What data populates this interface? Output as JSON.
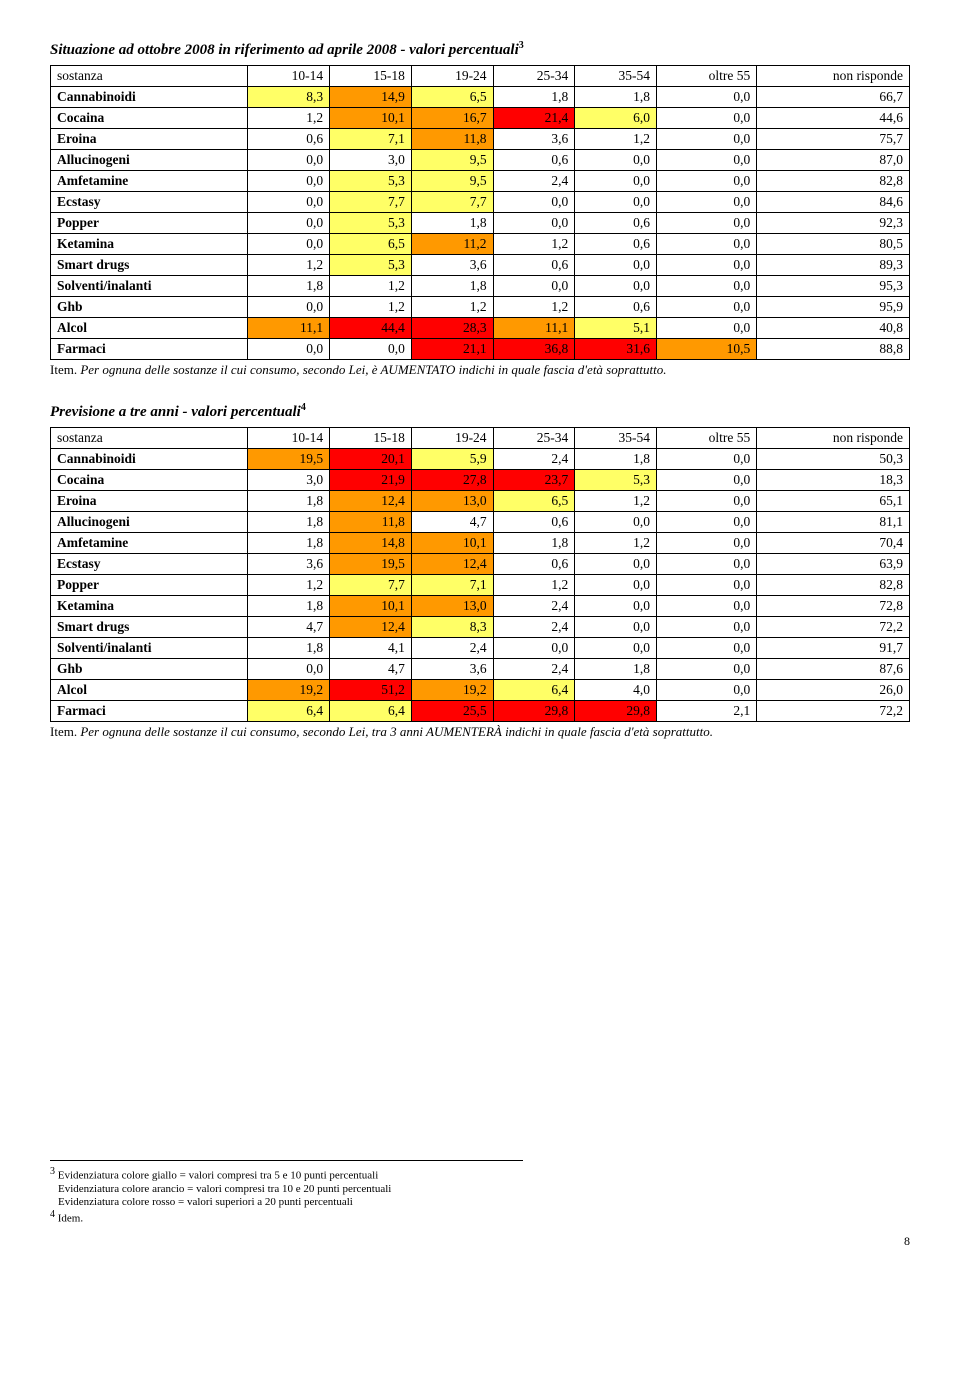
{
  "colors": {
    "yellow": "#ffff66",
    "orange": "#ff9900",
    "red": "#ff0000",
    "none": "#ffffff"
  },
  "table1": {
    "title": "Situazione ad ottobre 2008 in riferimento ad aprile 2008 - valori percentuali",
    "title_sup": "3",
    "columns": [
      "sostanza",
      "10-14",
      "15-18",
      "19-24",
      "25-34",
      "35-54",
      "oltre 55",
      "non risponde"
    ],
    "rows": [
      {
        "label": "Cannabinoidi",
        "cells": [
          {
            "v": "8,3",
            "c": "yellow"
          },
          {
            "v": "14,9",
            "c": "orange"
          },
          {
            "v": "6,5",
            "c": "yellow"
          },
          {
            "v": "1,8",
            "c": "none"
          },
          {
            "v": "1,8",
            "c": "none"
          },
          {
            "v": "0,0",
            "c": "none"
          },
          {
            "v": "66,7",
            "c": "none"
          }
        ]
      },
      {
        "label": "Cocaina",
        "cells": [
          {
            "v": "1,2",
            "c": "none"
          },
          {
            "v": "10,1",
            "c": "orange"
          },
          {
            "v": "16,7",
            "c": "orange"
          },
          {
            "v": "21,4",
            "c": "red"
          },
          {
            "v": "6,0",
            "c": "yellow"
          },
          {
            "v": "0,0",
            "c": "none"
          },
          {
            "v": "44,6",
            "c": "none"
          }
        ]
      },
      {
        "label": "Eroina",
        "cells": [
          {
            "v": "0,6",
            "c": "none"
          },
          {
            "v": "7,1",
            "c": "yellow"
          },
          {
            "v": "11,8",
            "c": "orange"
          },
          {
            "v": "3,6",
            "c": "none"
          },
          {
            "v": "1,2",
            "c": "none"
          },
          {
            "v": "0,0",
            "c": "none"
          },
          {
            "v": "75,7",
            "c": "none"
          }
        ]
      },
      {
        "label": "Allucinogeni",
        "cells": [
          {
            "v": "0,0",
            "c": "none"
          },
          {
            "v": "3,0",
            "c": "none"
          },
          {
            "v": "9,5",
            "c": "yellow"
          },
          {
            "v": "0,6",
            "c": "none"
          },
          {
            "v": "0,0",
            "c": "none"
          },
          {
            "v": "0,0",
            "c": "none"
          },
          {
            "v": "87,0",
            "c": "none"
          }
        ]
      },
      {
        "label": "Amfetamine",
        "cells": [
          {
            "v": "0,0",
            "c": "none"
          },
          {
            "v": "5,3",
            "c": "yellow"
          },
          {
            "v": "9,5",
            "c": "yellow"
          },
          {
            "v": "2,4",
            "c": "none"
          },
          {
            "v": "0,0",
            "c": "none"
          },
          {
            "v": "0,0",
            "c": "none"
          },
          {
            "v": "82,8",
            "c": "none"
          }
        ]
      },
      {
        "label": "Ecstasy",
        "cells": [
          {
            "v": "0,0",
            "c": "none"
          },
          {
            "v": "7,7",
            "c": "yellow"
          },
          {
            "v": "7,7",
            "c": "yellow"
          },
          {
            "v": "0,0",
            "c": "none"
          },
          {
            "v": "0,0",
            "c": "none"
          },
          {
            "v": "0,0",
            "c": "none"
          },
          {
            "v": "84,6",
            "c": "none"
          }
        ]
      },
      {
        "label": "Popper",
        "cells": [
          {
            "v": "0,0",
            "c": "none"
          },
          {
            "v": "5,3",
            "c": "yellow"
          },
          {
            "v": "1,8",
            "c": "none"
          },
          {
            "v": "0,0",
            "c": "none"
          },
          {
            "v": "0,6",
            "c": "none"
          },
          {
            "v": "0,0",
            "c": "none"
          },
          {
            "v": "92,3",
            "c": "none"
          }
        ]
      },
      {
        "label": "Ketamina",
        "cells": [
          {
            "v": "0,0",
            "c": "none"
          },
          {
            "v": "6,5",
            "c": "yellow"
          },
          {
            "v": "11,2",
            "c": "orange"
          },
          {
            "v": "1,2",
            "c": "none"
          },
          {
            "v": "0,6",
            "c": "none"
          },
          {
            "v": "0,0",
            "c": "none"
          },
          {
            "v": "80,5",
            "c": "none"
          }
        ]
      },
      {
        "label": "Smart drugs",
        "cells": [
          {
            "v": "1,2",
            "c": "none"
          },
          {
            "v": "5,3",
            "c": "yellow"
          },
          {
            "v": "3,6",
            "c": "none"
          },
          {
            "v": "0,6",
            "c": "none"
          },
          {
            "v": "0,0",
            "c": "none"
          },
          {
            "v": "0,0",
            "c": "none"
          },
          {
            "v": "89,3",
            "c": "none"
          }
        ]
      },
      {
        "label": "Solventi/inalanti",
        "cells": [
          {
            "v": "1,8",
            "c": "none"
          },
          {
            "v": "1,2",
            "c": "none"
          },
          {
            "v": "1,8",
            "c": "none"
          },
          {
            "v": "0,0",
            "c": "none"
          },
          {
            "v": "0,0",
            "c": "none"
          },
          {
            "v": "0,0",
            "c": "none"
          },
          {
            "v": "95,3",
            "c": "none"
          }
        ]
      },
      {
        "label": "Ghb",
        "cells": [
          {
            "v": "0,0",
            "c": "none"
          },
          {
            "v": "1,2",
            "c": "none"
          },
          {
            "v": "1,2",
            "c": "none"
          },
          {
            "v": "1,2",
            "c": "none"
          },
          {
            "v": "0,6",
            "c": "none"
          },
          {
            "v": "0,0",
            "c": "none"
          },
          {
            "v": "95,9",
            "c": "none"
          }
        ]
      },
      {
        "label": "Alcol",
        "cells": [
          {
            "v": "11,1",
            "c": "orange"
          },
          {
            "v": "44,4",
            "c": "red"
          },
          {
            "v": "28,3",
            "c": "red"
          },
          {
            "v": "11,1",
            "c": "orange"
          },
          {
            "v": "5,1",
            "c": "yellow"
          },
          {
            "v": "0,0",
            "c": "none"
          },
          {
            "v": "40,8",
            "c": "none"
          }
        ]
      },
      {
        "label": "Farmaci",
        "cells": [
          {
            "v": "0,0",
            "c": "none"
          },
          {
            "v": "0,0",
            "c": "none"
          },
          {
            "v": "21,1",
            "c": "red"
          },
          {
            "v": "36,8",
            "c": "red"
          },
          {
            "v": "31,6",
            "c": "red"
          },
          {
            "v": "10,5",
            "c": "orange"
          },
          {
            "v": "88,8",
            "c": "none"
          }
        ]
      }
    ],
    "item_prefix": "Item. ",
    "item_text": "Per ognuna delle sostanze il cui consumo, secondo Lei, è AUMENTATO indichi in quale fascia d'età soprattutto."
  },
  "table2": {
    "title": "Previsione a tre anni - valori percentuali",
    "title_sup": "4",
    "columns": [
      "sostanza",
      "10-14",
      "15-18",
      "19-24",
      "25-34",
      "35-54",
      "oltre 55",
      "non risponde"
    ],
    "rows": [
      {
        "label": "Cannabinoidi",
        "cells": [
          {
            "v": "19,5",
            "c": "orange"
          },
          {
            "v": "20,1",
            "c": "red"
          },
          {
            "v": "5,9",
            "c": "yellow"
          },
          {
            "v": "2,4",
            "c": "none"
          },
          {
            "v": "1,8",
            "c": "none"
          },
          {
            "v": "0,0",
            "c": "none"
          },
          {
            "v": "50,3",
            "c": "none"
          }
        ]
      },
      {
        "label": "Cocaina",
        "cells": [
          {
            "v": "3,0",
            "c": "none"
          },
          {
            "v": "21,9",
            "c": "red"
          },
          {
            "v": "27,8",
            "c": "red"
          },
          {
            "v": "23,7",
            "c": "red"
          },
          {
            "v": "5,3",
            "c": "yellow"
          },
          {
            "v": "0,0",
            "c": "none"
          },
          {
            "v": "18,3",
            "c": "none"
          }
        ]
      },
      {
        "label": "Eroina",
        "cells": [
          {
            "v": "1,8",
            "c": "none"
          },
          {
            "v": "12,4",
            "c": "orange"
          },
          {
            "v": "13,0",
            "c": "orange"
          },
          {
            "v": "6,5",
            "c": "yellow"
          },
          {
            "v": "1,2",
            "c": "none"
          },
          {
            "v": "0,0",
            "c": "none"
          },
          {
            "v": "65,1",
            "c": "none"
          }
        ]
      },
      {
        "label": "Allucinogeni",
        "cells": [
          {
            "v": "1,8",
            "c": "none"
          },
          {
            "v": "11,8",
            "c": "orange"
          },
          {
            "v": "4,7",
            "c": "none"
          },
          {
            "v": "0,6",
            "c": "none"
          },
          {
            "v": "0,0",
            "c": "none"
          },
          {
            "v": "0,0",
            "c": "none"
          },
          {
            "v": "81,1",
            "c": "none"
          }
        ]
      },
      {
        "label": "Amfetamine",
        "cells": [
          {
            "v": "1,8",
            "c": "none"
          },
          {
            "v": "14,8",
            "c": "orange"
          },
          {
            "v": "10,1",
            "c": "orange"
          },
          {
            "v": "1,8",
            "c": "none"
          },
          {
            "v": "1,2",
            "c": "none"
          },
          {
            "v": "0,0",
            "c": "none"
          },
          {
            "v": "70,4",
            "c": "none"
          }
        ]
      },
      {
        "label": "Ecstasy",
        "cells": [
          {
            "v": "3,6",
            "c": "none"
          },
          {
            "v": "19,5",
            "c": "orange"
          },
          {
            "v": "12,4",
            "c": "orange"
          },
          {
            "v": "0,6",
            "c": "none"
          },
          {
            "v": "0,0",
            "c": "none"
          },
          {
            "v": "0,0",
            "c": "none"
          },
          {
            "v": "63,9",
            "c": "none"
          }
        ]
      },
      {
        "label": "Popper",
        "cells": [
          {
            "v": "1,2",
            "c": "none"
          },
          {
            "v": "7,7",
            "c": "yellow"
          },
          {
            "v": "7,1",
            "c": "yellow"
          },
          {
            "v": "1,2",
            "c": "none"
          },
          {
            "v": "0,0",
            "c": "none"
          },
          {
            "v": "0,0",
            "c": "none"
          },
          {
            "v": "82,8",
            "c": "none"
          }
        ]
      },
      {
        "label": "Ketamina",
        "cells": [
          {
            "v": "1,8",
            "c": "none"
          },
          {
            "v": "10,1",
            "c": "orange"
          },
          {
            "v": "13,0",
            "c": "orange"
          },
          {
            "v": "2,4",
            "c": "none"
          },
          {
            "v": "0,0",
            "c": "none"
          },
          {
            "v": "0,0",
            "c": "none"
          },
          {
            "v": "72,8",
            "c": "none"
          }
        ]
      },
      {
        "label": "Smart drugs",
        "cells": [
          {
            "v": "4,7",
            "c": "none"
          },
          {
            "v": "12,4",
            "c": "orange"
          },
          {
            "v": "8,3",
            "c": "yellow"
          },
          {
            "v": "2,4",
            "c": "none"
          },
          {
            "v": "0,0",
            "c": "none"
          },
          {
            "v": "0,0",
            "c": "none"
          },
          {
            "v": "72,2",
            "c": "none"
          }
        ]
      },
      {
        "label": "Solventi/inalanti",
        "cells": [
          {
            "v": "1,8",
            "c": "none"
          },
          {
            "v": "4,1",
            "c": "none"
          },
          {
            "v": "2,4",
            "c": "none"
          },
          {
            "v": "0,0",
            "c": "none"
          },
          {
            "v": "0,0",
            "c": "none"
          },
          {
            "v": "0,0",
            "c": "none"
          },
          {
            "v": "91,7",
            "c": "none"
          }
        ]
      },
      {
        "label": "Ghb",
        "cells": [
          {
            "v": "0,0",
            "c": "none"
          },
          {
            "v": "4,7",
            "c": "none"
          },
          {
            "v": "3,6",
            "c": "none"
          },
          {
            "v": "2,4",
            "c": "none"
          },
          {
            "v": "1,8",
            "c": "none"
          },
          {
            "v": "0,0",
            "c": "none"
          },
          {
            "v": "87,6",
            "c": "none"
          }
        ]
      },
      {
        "label": "Alcol",
        "cells": [
          {
            "v": "19,2",
            "c": "orange"
          },
          {
            "v": "51,2",
            "c": "red"
          },
          {
            "v": "19,2",
            "c": "orange"
          },
          {
            "v": "6,4",
            "c": "yellow"
          },
          {
            "v": "4,0",
            "c": "none"
          },
          {
            "v": "0,0",
            "c": "none"
          },
          {
            "v": "26,0",
            "c": "none"
          }
        ]
      },
      {
        "label": "Farmaci",
        "cells": [
          {
            "v": "6,4",
            "c": "yellow"
          },
          {
            "v": "6,4",
            "c": "yellow"
          },
          {
            "v": "25,5",
            "c": "red"
          },
          {
            "v": "29,8",
            "c": "red"
          },
          {
            "v": "29,8",
            "c": "red"
          },
          {
            "v": "2,1",
            "c": "none"
          },
          {
            "v": "72,2",
            "c": "none"
          }
        ]
      }
    ],
    "item_prefix": "Item. ",
    "item_text": "Per ognuna delle sostanze il cui consumo, secondo Lei, tra 3 anni AUMENTERÀ indichi in quale fascia d'età soprattutto."
  },
  "footnotes": {
    "fn3_num": "3",
    "fn3_main": " Evidenziatura colore giallo = valori compresi tra 5 e 10 punti percentuali",
    "fn3_line2": "Evidenziatura colore arancio = valori compresi tra 10 e 20 punti percentuali",
    "fn3_line3": "Evidenziatura colore rosso = valori superiori a 20 punti percentuali",
    "fn4_num": "4",
    "fn4_text": " Idem."
  },
  "page_number": "8"
}
